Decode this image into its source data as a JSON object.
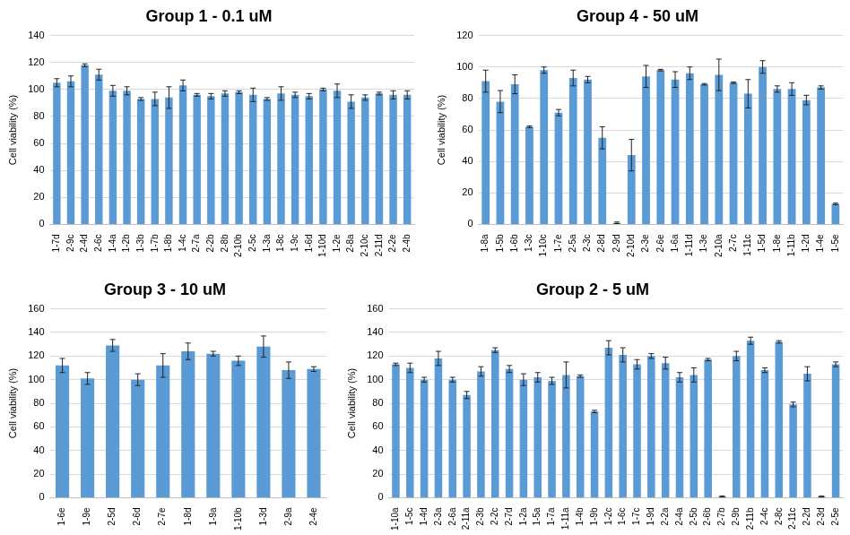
{
  "chart_data": [
    {
      "type": "bar",
      "title": "Group 1 - 0.1 uM",
      "y_label": "Cell viability (%)",
      "categories": [
        "1-7d",
        "2-9c",
        "2-4d",
        "2-6c",
        "1-4a",
        "1-2b",
        "1-3b",
        "1-7b",
        "1-8b",
        "1-4c",
        "2-7a",
        "2-2b",
        "2-8b",
        "2-10b",
        "2-5c",
        "1-3a",
        "1-8c",
        "1-9c",
        "1-6d",
        "1-10d",
        "1-2e",
        "2-8a",
        "2-10c",
        "2-11d",
        "2-2e",
        "2-4b"
      ],
      "values": [
        105,
        106,
        118,
        111,
        99,
        99,
        93,
        93,
        94,
        103,
        96,
        95,
        97,
        98,
        96,
        93,
        97,
        96,
        95,
        100,
        99,
        91,
        94,
        97,
        96,
        96
      ],
      "errors": [
        3,
        4,
        1,
        4,
        4,
        3,
        1,
        5,
        8,
        4,
        1,
        2,
        2,
        1,
        5,
        1,
        5,
        2,
        2,
        1,
        5,
        5,
        2,
        1,
        3,
        3
      ],
      "color": "#5b9bd5",
      "ylim": [
        0,
        140
      ],
      "yticks": [
        0,
        20,
        40,
        60,
        80,
        100,
        120,
        140
      ],
      "grid": true
    },
    {
      "type": "bar",
      "title": "Group 4 - 50 uM",
      "y_label": "Cell viability (%)",
      "categories": [
        "1-8a",
        "1-5b",
        "1-6b",
        "1-3c",
        "1-10c",
        "1-7e",
        "2-5a",
        "2-3c",
        "2-8d",
        "2-9d",
        "2-10d",
        "2-3e",
        "2-6e",
        "1-6a",
        "1-11d",
        "1-3e",
        "2-10a",
        "2-7c",
        "1-11c",
        "1-5d",
        "1-8e",
        "1-11b",
        "1-2d",
        "1-4e",
        "1-5e"
      ],
      "values": [
        91,
        78,
        89,
        62,
        98,
        71,
        93,
        92,
        55,
        1,
        44,
        94,
        98,
        92,
        96,
        89,
        95,
        90,
        83,
        100,
        86,
        86,
        79,
        87,
        13
      ],
      "errors": [
        7,
        7,
        6,
        0.5,
        2,
        2,
        5,
        2,
        7,
        0.5,
        10,
        7,
        0.5,
        5,
        4,
        0.5,
        10,
        0.5,
        9,
        4,
        2,
        4,
        3,
        1,
        0.5
      ],
      "color": "#5b9bd5",
      "ylim": [
        0,
        120
      ],
      "yticks": [
        0,
        20,
        40,
        60,
        80,
        100,
        120
      ],
      "grid": true
    },
    {
      "type": "bar",
      "title": "Group 3 - 10 uM",
      "y_label": "Cell viability (%)",
      "categories": [
        "1-6e",
        "1-9e",
        "2-5d",
        "2-6d",
        "2-7e",
        "1-8d",
        "1-9a",
        "1-10b",
        "1-3d",
        "2-9a",
        "2-4e"
      ],
      "values": [
        112,
        101,
        129,
        100,
        112,
        124,
        122,
        116,
        128,
        108,
        109
      ],
      "errors": [
        6,
        5,
        5,
        5,
        10,
        7,
        2,
        4,
        9,
        7,
        2
      ],
      "color": "#5b9bd5",
      "ylim": [
        0,
        160
      ],
      "yticks": [
        0,
        20,
        40,
        60,
        80,
        100,
        120,
        140,
        160
      ],
      "grid": true
    },
    {
      "type": "bar",
      "title": "Group 2 - 5 uM",
      "y_label": "Cell viability (%)",
      "categories": [
        "1-10a",
        "1-5c",
        "1-4d",
        "2-3a",
        "2-6a",
        "2-11a",
        "2-3b",
        "2-2c",
        "2-7d",
        "1-2a",
        "1-5a",
        "1-7a",
        "1-11a",
        "1-4b",
        "1-9b",
        "1-2c",
        "1-6c",
        "1-7c",
        "1-9d",
        "2-2a",
        "2-4a",
        "2-5b",
        "2-6b",
        "2-7b",
        "2-9b",
        "2-11b",
        "2-4c",
        "2-8c",
        "2-11c",
        "2-2d",
        "2-3d",
        "2-5e"
      ],
      "values": [
        113,
        110,
        100,
        118,
        100,
        87,
        107,
        125,
        109,
        100,
        102,
        99,
        104,
        103,
        73,
        127,
        121,
        113,
        120,
        114,
        102,
        104,
        117,
        1,
        120,
        133,
        108,
        132,
        79,
        105,
        1,
        113
      ],
      "errors": [
        1,
        4,
        2,
        6,
        2,
        3,
        4,
        2,
        3,
        5,
        4,
        3,
        11,
        1,
        1,
        6,
        6,
        4,
        2,
        5,
        4,
        6,
        1,
        0.5,
        4,
        3,
        2,
        1,
        2,
        6,
        0.5,
        2
      ],
      "color": "#5b9bd5",
      "ylim": [
        0,
        160
      ],
      "yticks": [
        0,
        20,
        40,
        60,
        80,
        100,
        120,
        140,
        160
      ],
      "grid": true
    }
  ]
}
